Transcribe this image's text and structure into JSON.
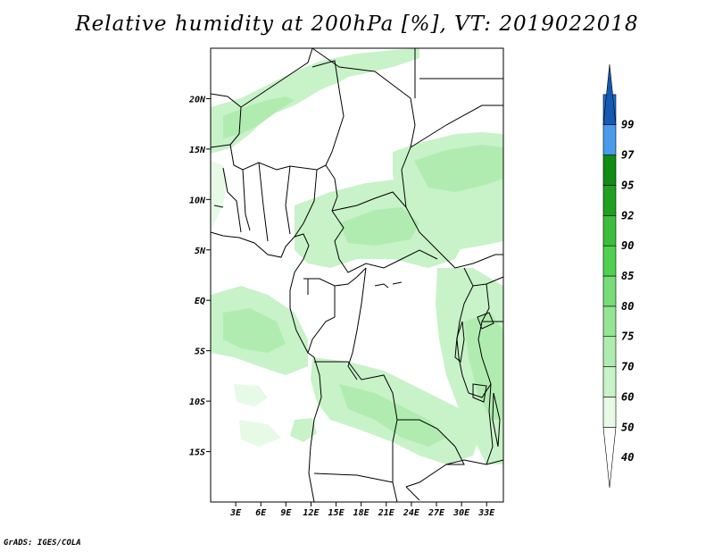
{
  "title": "Relative humidity at 200hPa [%], VT: 2019022018",
  "credit": "GrADS: IGES/COLA",
  "map": {
    "lon_range": [
      0,
      35
    ],
    "lat_range": [
      -20,
      25
    ],
    "lat_ticks": [
      "20N",
      "15N",
      "10N",
      "5N",
      "EQ",
      "5S",
      "10S",
      "15S"
    ],
    "lon_ticks": [
      "3E",
      "6E",
      "9E",
      "12E",
      "15E",
      "18E",
      "21E",
      "24E",
      "27E",
      "30E",
      "33E"
    ]
  },
  "colorbar": {
    "labels": [
      "40",
      "50",
      "60",
      "70",
      "75",
      "80",
      "85",
      "90",
      "92",
      "95",
      "97",
      "99"
    ],
    "colors": [
      "#ffffff",
      "#e6fae6",
      "#c8f2c8",
      "#b0ecb0",
      "#96e496",
      "#78dc78",
      "#50d050",
      "#3cbe3c",
      "#20a020",
      "#128c12",
      "#4a9bea",
      "#1e6ed2",
      "#145ab4"
    ]
  }
}
